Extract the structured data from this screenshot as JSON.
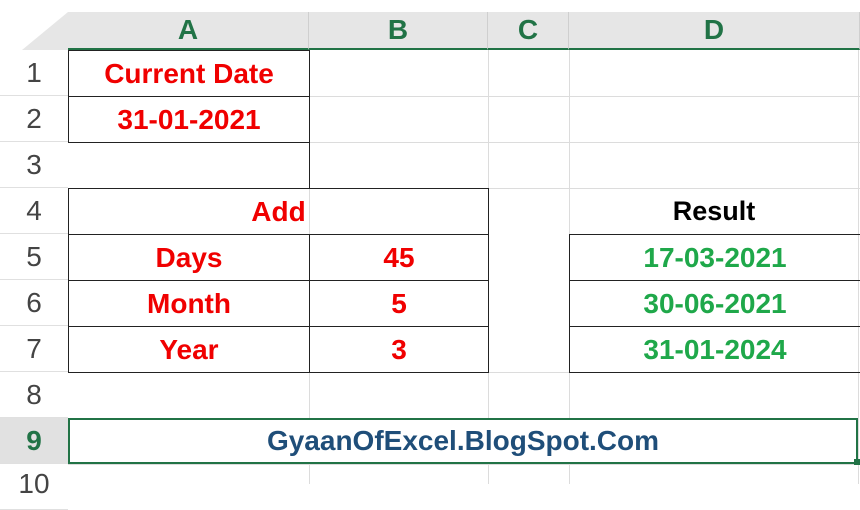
{
  "columns": [
    "A",
    "B",
    "C",
    "D"
  ],
  "rows": [
    "1",
    "2",
    "3",
    "4",
    "5",
    "6",
    "7",
    "8",
    "9",
    "10"
  ],
  "cells": {
    "A1": "Current Date",
    "A2": "31-01-2021",
    "A4": "Add",
    "A5": "Days",
    "B5": "45",
    "A6": "Month",
    "B6": "5",
    "A7": "Year",
    "B7": "3",
    "D4": "Result",
    "D5": "17-03-2021",
    "D6": "30-06-2021",
    "D7": "31-01-2024",
    "A9": "GyaanOfExcel.BlogSpot.Com"
  },
  "colors": {
    "label": "#f00000",
    "result": "#1fa84a",
    "footer": "#1f4e79",
    "selection": "#217346"
  }
}
